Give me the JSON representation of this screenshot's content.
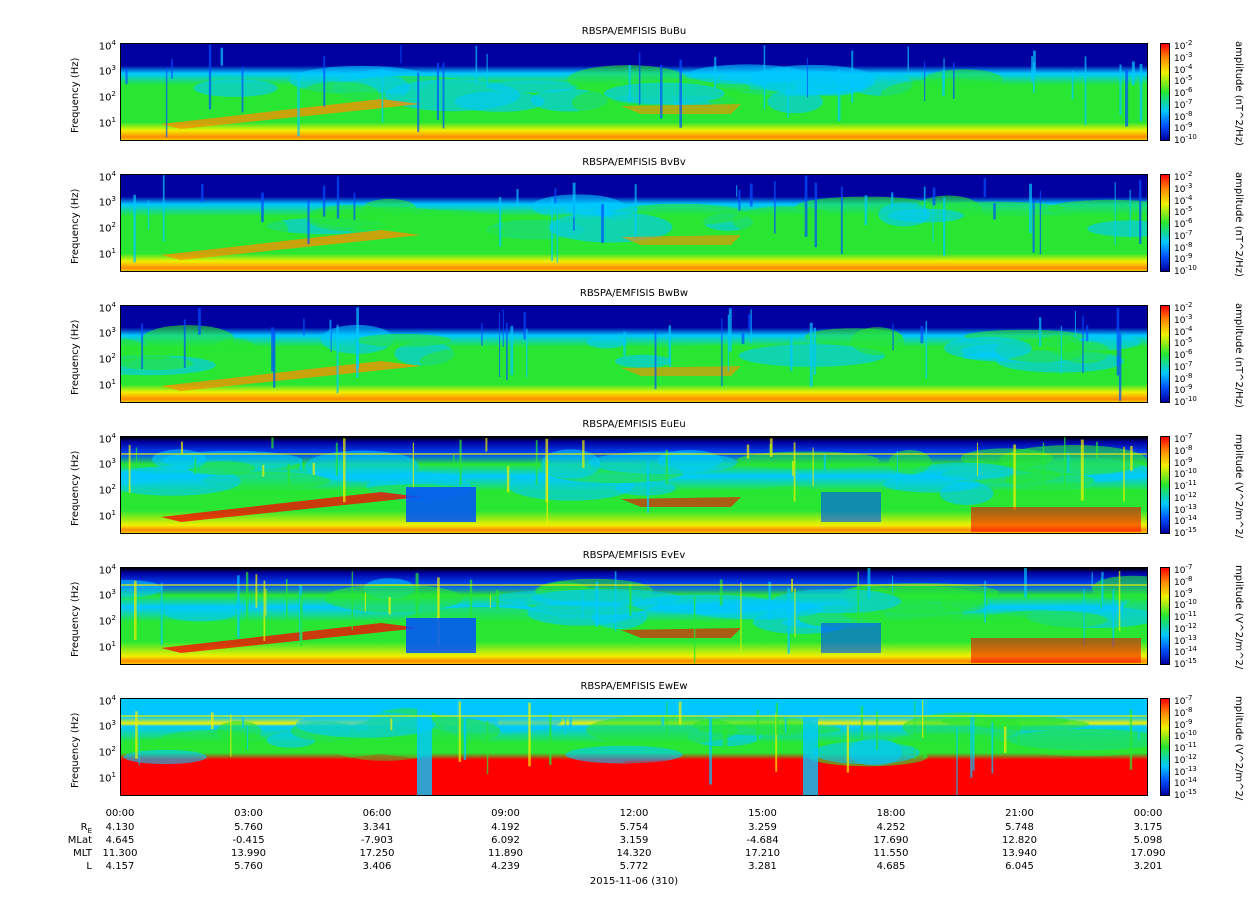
{
  "colors": {
    "dark_blue": "#0000a0",
    "blue": "#0050ff",
    "cyan": "#00c8ff",
    "green": "#28e632",
    "yellow": "#f0f000",
    "orange": "#ff8c00",
    "red": "#ff0000",
    "black": "#000000"
  },
  "chart_data": {
    "type": "heatmap",
    "panels": [
      {
        "title": "RBSPA/EMFISIS  BuBu",
        "ylabel": "Frequency (Hz)",
        "cblabel": "amplitude (nT^2/Hz)",
        "cb_ticks": [
          "-2",
          "-3",
          "-4",
          "-5",
          "-6",
          "-7",
          "-8",
          "-9",
          "-10"
        ]
      },
      {
        "title": "RBSPA/EMFISIS  BvBv",
        "ylabel": "Frequency (Hz)",
        "cblabel": "amplitude (nT^2/Hz)",
        "cb_ticks": [
          "-2",
          "-3",
          "-4",
          "-5",
          "-6",
          "-7",
          "-8",
          "-9",
          "-10"
        ]
      },
      {
        "title": "RBSPA/EMFISIS  BwBw",
        "ylabel": "Frequency (Hz)",
        "cblabel": "amplitude (nT^2/Hz)",
        "cb_ticks": [
          "-2",
          "-3",
          "-4",
          "-5",
          "-6",
          "-7",
          "-8",
          "-9",
          "-10"
        ]
      },
      {
        "title": "RBSPA/EMFISIS  EuEu",
        "ylabel": "Frequency (Hz)",
        "cblabel": "mplitude (V^2/m^2/",
        "cb_ticks": [
          "-7",
          "-8",
          "-9",
          "-10",
          "-11",
          "-12",
          "-13",
          "-14",
          "-15"
        ]
      },
      {
        "title": "RBSPA/EMFISIS  EvEv",
        "ylabel": "Frequency (Hz)",
        "cblabel": "mplitude (V^2/m^2/",
        "cb_ticks": [
          "-7",
          "-8",
          "-9",
          "-10",
          "-11",
          "-12",
          "-13",
          "-14",
          "-15"
        ]
      },
      {
        "title": "RBSPA/EMFISIS  EwEw",
        "ylabel": "Frequency (Hz)",
        "cblabel": "mplitude (V^2/m^2/",
        "cb_ticks": [
          "-7",
          "-8",
          "-9",
          "-10",
          "-11",
          "-12",
          "-13",
          "-14",
          "-15"
        ]
      }
    ],
    "y_ticks": [
      "4",
      "3",
      "2",
      "1"
    ],
    "y_tick_base": "10",
    "x_ticks": [
      "00:00",
      "03:00",
      "06:00",
      "09:00",
      "12:00",
      "15:00",
      "18:00",
      "21:00",
      "00:00"
    ],
    "ephemeris": [
      {
        "label": "R",
        "sub": "E",
        "values": [
          "4.130",
          "5.760",
          "3.341",
          "4.192",
          "5.754",
          "3.259",
          "4.252",
          "5.748",
          "3.175"
        ]
      },
      {
        "label": "MLat",
        "sub": "",
        "values": [
          "4.645",
          "-0.415",
          "-7.903",
          "6.092",
          "3.159",
          "-4.684",
          "17.690",
          "12.820",
          "5.098"
        ]
      },
      {
        "label": "MLT",
        "sub": "",
        "values": [
          "11.300",
          "13.990",
          "17.250",
          "11.890",
          "14.320",
          "17.210",
          "11.550",
          "13.940",
          "17.090"
        ]
      },
      {
        "label": "L",
        "sub": "",
        "values": [
          "4.157",
          "5.760",
          "3.406",
          "4.239",
          "5.772",
          "3.281",
          "4.685",
          "6.045",
          "3.201"
        ]
      }
    ],
    "date_label": "2015-11-06 (310)"
  }
}
